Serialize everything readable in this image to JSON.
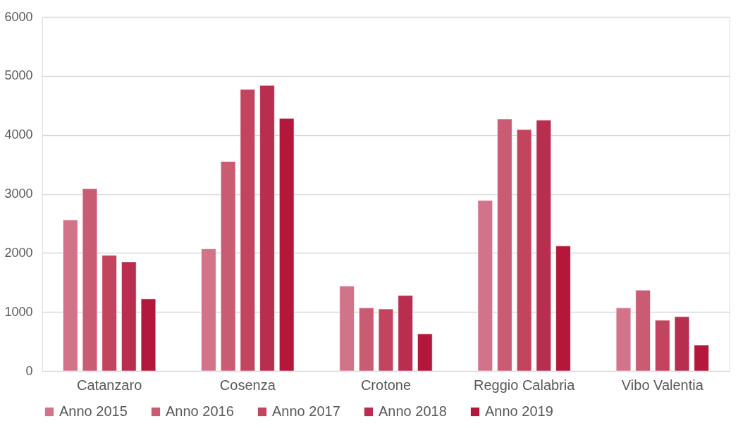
{
  "chart_data": {
    "type": "bar",
    "categories": [
      "Catanzaro",
      "Cosenza",
      "Crotone",
      "Reggio Calabria",
      "Vibo Valentia"
    ],
    "series": [
      {
        "name": "Anno 2015",
        "color": "#d37389",
        "values": [
          2560,
          2070,
          1440,
          2890,
          1070
        ]
      },
      {
        "name": "Anno 2016",
        "color": "#c95c73",
        "values": [
          3090,
          3550,
          1070,
          4270,
          1370
        ]
      },
      {
        "name": "Anno 2017",
        "color": "#c3445f",
        "values": [
          1960,
          4770,
          1050,
          4090,
          860
        ]
      },
      {
        "name": "Anno 2018",
        "color": "#b92d4e",
        "values": [
          1850,
          4840,
          1280,
          4250,
          920
        ]
      },
      {
        "name": "Anno 2019",
        "color": "#b3173b",
        "values": [
          1220,
          4280,
          630,
          2120,
          440
        ]
      }
    ],
    "ylim": [
      0,
      6000
    ],
    "yticks": [
      0,
      1000,
      2000,
      3000,
      4000,
      5000,
      6000
    ],
    "grid": "y",
    "legend": "bottom"
  }
}
